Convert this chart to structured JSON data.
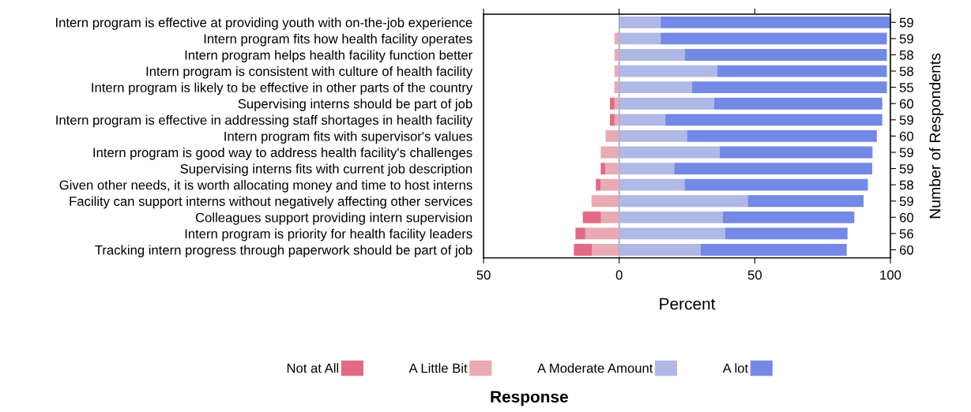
{
  "chart_data": {
    "type": "bar",
    "orientation": "horizontal",
    "stacked": true,
    "categories": [
      "Intern program is effective at providing youth with on-the-job experience",
      "Intern program fits how health facility operates",
      "Intern program helps health facility function better",
      "Intern program is consistent with culture of health facility",
      "Intern program is likely to be effective in other parts of the country",
      "Supervising interns should be part of job",
      "Intern program is effective in addressing staff shortages in health facility",
      "Intern program fits with supervisor's values",
      "Intern program is good way to address health facility's challenges",
      "Supervising interns fits with current job description",
      "Given other needs, it is worth allocating money and time to host interns",
      "Facility can support interns without negatively affecting other services",
      "Colleagues support providing intern supervision",
      "Intern program is priority for health facility leaders",
      "Tracking intern progress through paperwork should be part of job"
    ],
    "y2_categories": [
      "59",
      "59",
      "58",
      "58",
      "55",
      "60",
      "59",
      "60",
      "59",
      "59",
      "58",
      "59",
      "60",
      "56",
      "60"
    ],
    "series": [
      {
        "name": "A Little Bit",
        "color": "#e8aab5",
        "values": [
          0,
          -1.7,
          -1.7,
          -1.7,
          -1.8,
          -1.7,
          -1.7,
          -5,
          -6.8,
          -5.1,
          -6.9,
          -10.2,
          -6.7,
          -12.5,
          -10
        ]
      },
      {
        "name": "Not at All",
        "color": "#e06a87",
        "values": [
          0,
          0,
          0,
          0,
          0,
          -1.7,
          -1.7,
          0,
          0,
          -1.7,
          -1.7,
          0,
          -6.7,
          -3.6,
          -6.7
        ]
      },
      {
        "name": "A Moderate Amount",
        "color": "#b0b8e6",
        "values": [
          15.3,
          15.3,
          24.1,
          36.2,
          26.9,
          35,
          17,
          25,
          37,
          20.3,
          24.1,
          47.4,
          38.2,
          39.1,
          30
        ]
      },
      {
        "name": "A lot",
        "color": "#7489e5",
        "values": [
          84.7,
          83.4,
          74.6,
          62.5,
          71.8,
          62,
          80,
          70,
          56.4,
          73,
          67.6,
          42.7,
          48.5,
          45.1,
          53.9
        ]
      }
    ],
    "xlim": [
      -50,
      100
    ],
    "xticks": [
      {
        "value": -50,
        "label": "50"
      },
      0,
      50,
      100
    ],
    "xlabel": "Percent",
    "y2label": "Number of Respondents",
    "legend_title": "Response",
    "legend": "bottom",
    "ref_lines": [
      {
        "axis": "x",
        "value": 0,
        "label": null,
        "color": "#808080"
      }
    ]
  }
}
